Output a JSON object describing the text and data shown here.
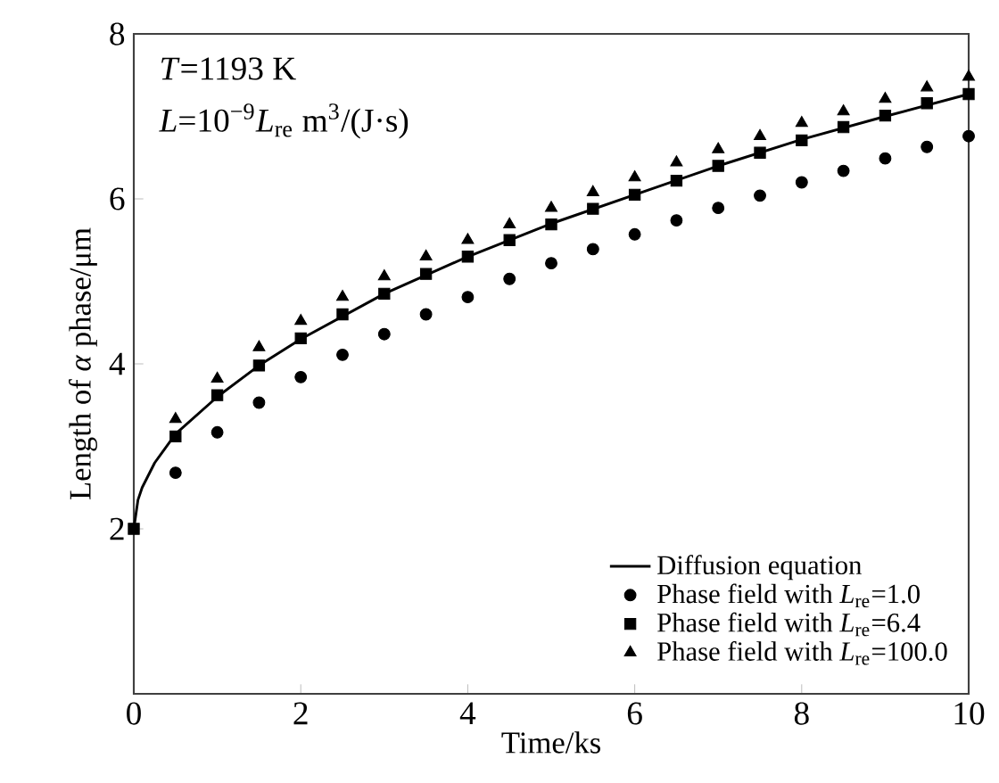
{
  "chart_data": {
    "type": "scatter",
    "xlabel": "Time/ks",
    "ylabel": "Length of *α* phase/μm",
    "xlim": [
      0,
      10
    ],
    "ylim": [
      0,
      8
    ],
    "xticks": [
      0,
      2,
      4,
      6,
      8,
      10
    ],
    "yticks": [
      2,
      4,
      6,
      8
    ],
    "annotations": [
      "*T*=1193 K",
      "*L*=10$^{−9}$*L*$_{re}$ m$^{3}$/(J·s)"
    ],
    "legend": "bottom right",
    "series": [
      {
        "name": "Diffusion equation",
        "type": "line",
        "color": "#000000",
        "marker": "none",
        "line_style": "solid",
        "x": [
          0,
          0.05,
          0.1,
          0.25,
          0.5,
          1,
          1.5,
          2,
          3,
          4,
          5,
          6,
          7,
          8,
          9,
          10
        ],
        "values": [
          2.0,
          2.35,
          2.5,
          2.8,
          3.15,
          3.6,
          3.98,
          4.3,
          4.85,
          5.3,
          5.7,
          6.05,
          6.4,
          6.72,
          7.0,
          7.27
        ]
      },
      {
        "name": "Phase field with *L*$_{re}$=1.0",
        "color": "#000000",
        "marker": "circle",
        "x": [
          0.5,
          1,
          1.5,
          2,
          2.5,
          3,
          3.5,
          4,
          4.5,
          5,
          5.5,
          6,
          6.5,
          7,
          7.5,
          8,
          8.5,
          9,
          9.5,
          10
        ],
        "values": [
          2.68,
          3.17,
          3.53,
          3.84,
          4.11,
          4.36,
          4.6,
          4.81,
          5.03,
          5.22,
          5.39,
          5.57,
          5.74,
          5.89,
          6.04,
          6.2,
          6.34,
          6.49,
          6.63,
          6.76
        ]
      },
      {
        "name": "Phase field with *L*$_{re}$=6.4",
        "color": "#000000",
        "marker": "square",
        "x": [
          0,
          0.5,
          1,
          1.5,
          2,
          2.5,
          3,
          3.5,
          4,
          4.5,
          5,
          5.5,
          6,
          6.5,
          7,
          7.5,
          8,
          8.5,
          9,
          9.5,
          10
        ],
        "values": [
          2.0,
          3.12,
          3.62,
          3.98,
          4.31,
          4.6,
          4.85,
          5.09,
          5.3,
          5.5,
          5.69,
          5.88,
          6.05,
          6.22,
          6.4,
          6.56,
          6.71,
          6.87,
          7.01,
          7.16,
          7.27
        ]
      },
      {
        "name": "Phase field with *L*$_{re}$=100.0",
        "color": "#000000",
        "marker": "triangle",
        "x": [
          0.5,
          1,
          1.5,
          2,
          2.5,
          3,
          3.5,
          4,
          4.5,
          5,
          5.5,
          6,
          6.5,
          7,
          7.5,
          8,
          8.5,
          9,
          9.5,
          10
        ],
        "values": [
          3.33,
          3.82,
          4.2,
          4.52,
          4.81,
          5.06,
          5.3,
          5.5,
          5.69,
          5.89,
          6.08,
          6.26,
          6.44,
          6.6,
          6.76,
          6.92,
          7.06,
          7.21,
          7.35,
          7.48
        ]
      }
    ]
  }
}
